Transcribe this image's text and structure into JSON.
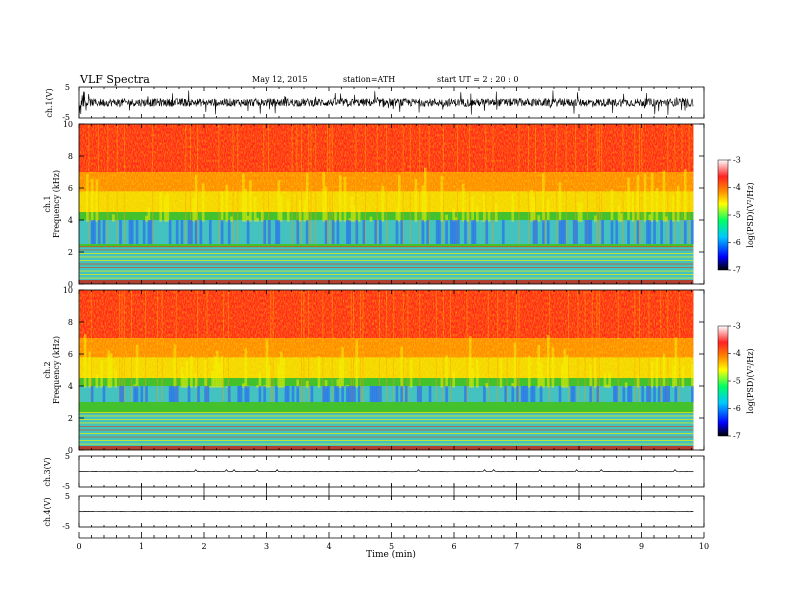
{
  "header": {
    "title": "VLF  Spectra",
    "date": "May 12, 2015",
    "station": "station=ATH",
    "start": "start  UT =   2 : 20 : 0"
  },
  "chart_data": [
    {
      "type": "line",
      "panel": "ch1-waveform",
      "ylabel": "ch.1(V)",
      "ylim": [
        -5,
        5
      ],
      "yticks": [
        "5",
        "-5"
      ],
      "x_range_min": [
        0,
        9.83
      ]
    },
    {
      "type": "heatmap",
      "panel": "ch1-spectrogram",
      "ylabel": "ch.1\nFrequency (kHz)",
      "ylabel_line1": "ch.1",
      "ylabel_line2": "Frequency (kHz)",
      "ylim": [
        0,
        10
      ],
      "yticks": [
        "0",
        "2",
        "4",
        "6",
        "8",
        "10"
      ],
      "x_range_min": [
        0,
        9.83
      ],
      "band_description": {
        "high_psd_above_khz": 4.5,
        "low_psd_band_khz": [
          2.5,
          4
        ],
        "mixed_below_khz": 2.5
      }
    },
    {
      "type": "heatmap",
      "panel": "ch2-spectrogram",
      "ylabel_line1": "ch.2",
      "ylabel_line2": "Frequency (kHz)",
      "ylim": [
        0,
        10
      ],
      "yticks": [
        "0",
        "2",
        "4",
        "6",
        "8",
        "10"
      ],
      "x_range_min": [
        0,
        9.83
      ],
      "band_description": {
        "high_psd_above_khz": 4.5,
        "low_psd_band_khz": [
          3,
          4
        ],
        "mixed_below_khz": 2.5
      }
    },
    {
      "type": "line",
      "panel": "ch3-waveform",
      "ylabel": "ch.3(V)",
      "ylim": [
        -5,
        5
      ],
      "yticks": [
        "5",
        "-5"
      ],
      "level": 0
    },
    {
      "type": "line",
      "panel": "ch4-waveform",
      "ylabel": "ch.4(V)",
      "ylim": [
        -5,
        5
      ],
      "yticks": [
        "5",
        "-5"
      ],
      "level": 0
    }
  ],
  "xaxis": {
    "label": "Time  (min)",
    "ticks": [
      "0",
      "1",
      "2",
      "3",
      "4",
      "5",
      "6",
      "7",
      "8",
      "9",
      "10"
    ],
    "xlim": [
      0,
      10
    ]
  },
  "colorbar": {
    "label": "log(PSD)(V²/Hz)",
    "ticks": [
      "-3",
      "-4",
      "-5",
      "-6",
      "-7"
    ],
    "range": [
      -7,
      -3
    ],
    "colors": [
      "#000000",
      "#0000ff",
      "#00c8ff",
      "#00ff66",
      "#ffff00",
      "#ff8800",
      "#ff2222",
      "#ffffff"
    ]
  },
  "colors": {
    "high": "#ff2a1a",
    "orange": "#ff9a00",
    "yellow": "#f2f200",
    "green": "#22dd33",
    "cyan": "#22dddd",
    "blue": "#2255ff"
  }
}
